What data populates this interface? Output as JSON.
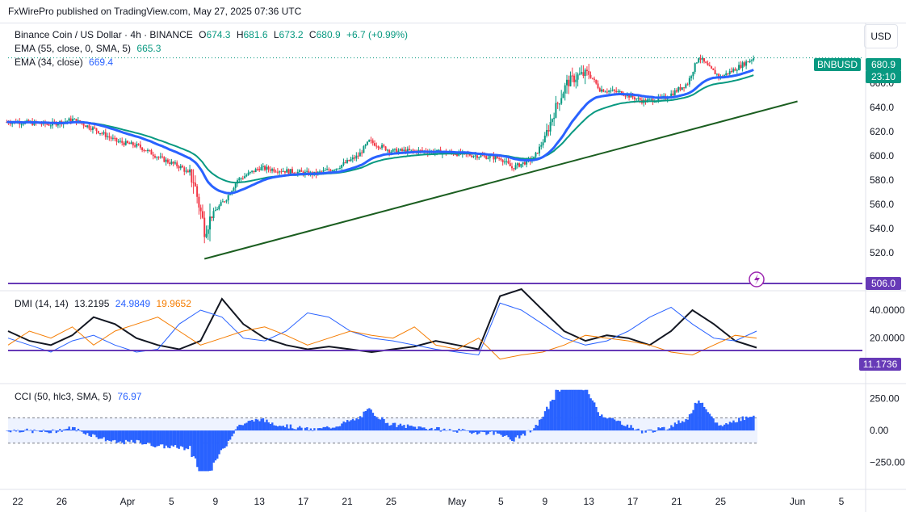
{
  "header": {
    "publisher": "FxWirePro published on TradingView.com, May 27, 2025 07:36 UTC"
  },
  "price_axis": {
    "currency": "USD"
  },
  "legend": {
    "symbol": "Binance Coin / US Dollar · 4h · BINANCE",
    "o_label": "O",
    "o": "674.3",
    "h_label": "H",
    "h": "681.6",
    "l_label": "L",
    "l": "673.2",
    "c_label": "C",
    "c": "680.9",
    "change": "+6.7 (+0.99%)",
    "ema55": {
      "label": "EMA (55, close, 0, SMA, 5)",
      "value": "665.3"
    },
    "ema34": {
      "label": "EMA (34, close)",
      "value": "669.4"
    },
    "dmi": {
      "label": "DMI (14, 14)",
      "v1": "13.2195",
      "v2": "24.9849",
      "v3": "19.9652"
    },
    "cci": {
      "label": "CCI (50, hlc3, SMA, 5)",
      "value": "76.97"
    }
  },
  "tags": {
    "symbol_tag": "BNBUSD",
    "last_price": "680.9",
    "countdown": "23:10",
    "support_level": "506.0",
    "dmi_level": "11.1736"
  },
  "colors": {
    "up": "#089981",
    "down": "#f23645",
    "ema34": "#2962ff",
    "ema55": "#089981",
    "trendline": "#1b5e20",
    "hline": "#673ab7",
    "dmi_adx": "#131722",
    "dmi_plus": "#2962ff",
    "dmi_minus": "#f57c00",
    "cci": "#2962ff"
  },
  "chart_data": [
    {
      "type": "candlestick",
      "title": "Binance Coin / US Dollar · 4h · BINANCE",
      "x_tick_labels": [
        "22",
        "26",
        "Apr",
        "5",
        "9",
        "13",
        "17",
        "21",
        "25",
        "May",
        "5",
        "9",
        "13",
        "17",
        "21",
        "25",
        "Jun",
        "5"
      ],
      "y_ticks": [
        520,
        540,
        560,
        580,
        600,
        620,
        640,
        660
      ],
      "ylim": [
        510,
        690
      ],
      "approx_close_path": [
        {
          "x": "Mar 21",
          "y": 628
        },
        {
          "x": "Mar 24",
          "y": 626
        },
        {
          "x": "Mar 26",
          "y": 630
        },
        {
          "x": "Mar 28",
          "y": 622
        },
        {
          "x": "Mar 30",
          "y": 612
        },
        {
          "x": "Apr 1",
          "y": 608
        },
        {
          "x": "Apr 3",
          "y": 598
        },
        {
          "x": "Apr 5",
          "y": 590
        },
        {
          "x": "Apr 6",
          "y": 580
        },
        {
          "x": "Apr 7",
          "y": 540
        },
        {
          "x": "Apr 8",
          "y": 555
        },
        {
          "x": "Apr 9",
          "y": 565
        },
        {
          "x": "Apr 10",
          "y": 580
        },
        {
          "x": "Apr 12",
          "y": 590
        },
        {
          "x": "Apr 14",
          "y": 588
        },
        {
          "x": "Apr 17",
          "y": 585
        },
        {
          "x": "Apr 19",
          "y": 590
        },
        {
          "x": "Apr 21",
          "y": 600
        },
        {
          "x": "Apr 22",
          "y": 612
        },
        {
          "x": "Apr 24",
          "y": 604
        },
        {
          "x": "Apr 27",
          "y": 604
        },
        {
          "x": "Apr 30",
          "y": 602
        },
        {
          "x": "May 2",
          "y": 600
        },
        {
          "x": "May 4",
          "y": 598
        },
        {
          "x": "May 5",
          "y": 590
        },
        {
          "x": "May 7",
          "y": 598
        },
        {
          "x": "May 8",
          "y": 615
        },
        {
          "x": "May 9",
          "y": 640
        },
        {
          "x": "May 10",
          "y": 660
        },
        {
          "x": "May 11",
          "y": 666
        },
        {
          "x": "May 12",
          "y": 668
        },
        {
          "x": "May 13",
          "y": 655
        },
        {
          "x": "May 15",
          "y": 652
        },
        {
          "x": "May 17",
          "y": 645
        },
        {
          "x": "May 19",
          "y": 648
        },
        {
          "x": "May 21",
          "y": 660
        },
        {
          "x": "May 22",
          "y": 682
        },
        {
          "x": "May 23",
          "y": 672
        },
        {
          "x": "May 24",
          "y": 665
        },
        {
          "x": "May 25",
          "y": 670
        },
        {
          "x": "May 27",
          "y": 680.9
        }
      ],
      "ema34_last": 669.4,
      "ema55_last": 665.3,
      "trendline": {
        "start": {
          "x": "Apr 7",
          "y": 515
        },
        "end": {
          "x": "May 31",
          "y": 645
        }
      },
      "horizontal_line": 506.0
    },
    {
      "type": "line",
      "title": "DMI (14, 14)",
      "y_ticks": [
        0,
        20,
        40
      ],
      "ylim": [
        -5,
        55
      ],
      "horizontal_line": 11.1736,
      "series": [
        {
          "name": "",
          "values": [
            25,
            18,
            15,
            22,
            35,
            30,
            20,
            15,
            12,
            18,
            48,
            30,
            20,
            15,
            12,
            14,
            12,
            10,
            12,
            14,
            18,
            15,
            12,
            50,
            55,
            40,
            25,
            18,
            22,
            20,
            15,
            25,
            40,
            30,
            18,
            13.2
          ]
        },
        {
          "name": "",
          "values": [
            20,
            15,
            10,
            18,
            22,
            15,
            10,
            12,
            30,
            40,
            35,
            20,
            18,
            25,
            38,
            35,
            25,
            20,
            18,
            15,
            12,
            10,
            8,
            45,
            40,
            30,
            20,
            15,
            18,
            25,
            35,
            42,
            30,
            20,
            18,
            25.0
          ]
        },
        {
          "name": "",
          "values": [
            15,
            25,
            20,
            28,
            15,
            25,
            30,
            35,
            25,
            15,
            20,
            25,
            28,
            22,
            15,
            20,
            25,
            22,
            20,
            28,
            15,
            12,
            20,
            5,
            8,
            10,
            15,
            22,
            20,
            18,
            15,
            10,
            8,
            15,
            22,
            20.0
          ]
        }
      ]
    },
    {
      "type": "bar",
      "title": "CCI (50, hlc3, SMA, 5)",
      "y_ticks": [
        -250,
        0,
        250
      ],
      "ylim": [
        -400,
        350
      ],
      "bands": [
        100,
        -100
      ],
      "last_value": 76.97
    }
  ]
}
